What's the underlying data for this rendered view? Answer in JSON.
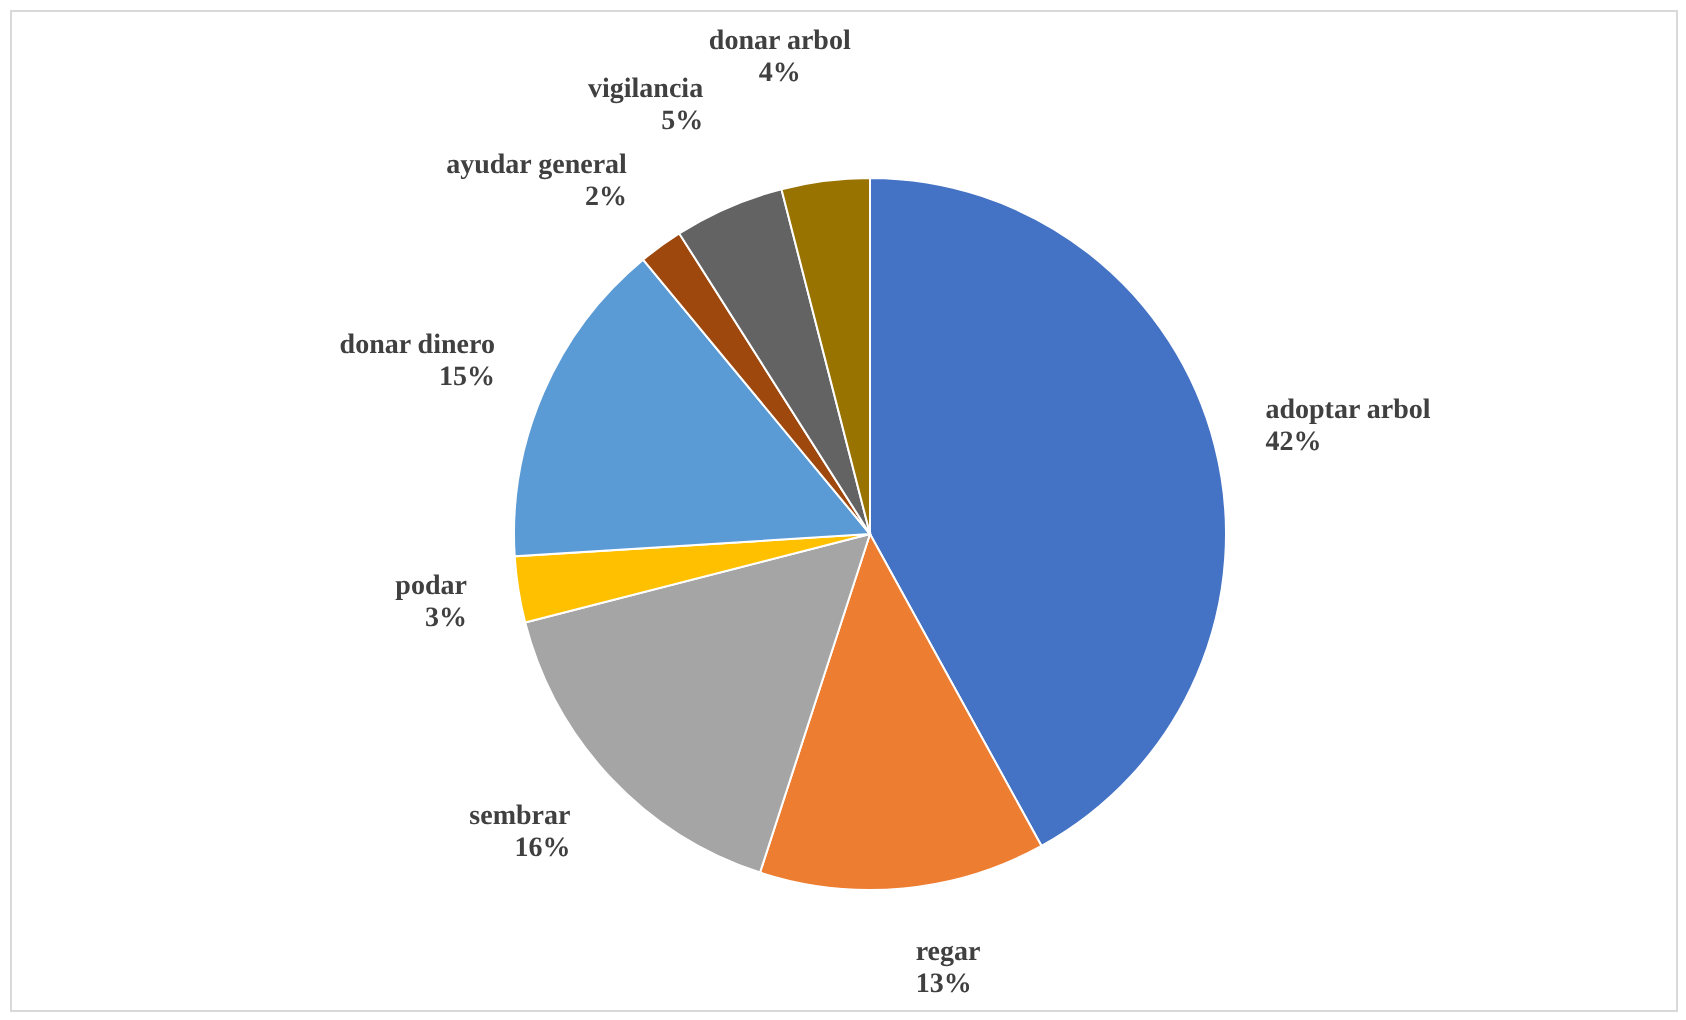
{
  "chart_data": {
    "type": "pie",
    "categories": [
      "adoptar arbol",
      "regar",
      "sembrar",
      "podar",
      "donar dinero",
      "ayudar general",
      "vigilancia",
      "donar arbol"
    ],
    "values": [
      42,
      13,
      16,
      3,
      15,
      2,
      5,
      4
    ],
    "value_labels": [
      "42%",
      "13%",
      "16%",
      "3%",
      "15%",
      "2%",
      "5%",
      "4%"
    ],
    "colors": [
      "#4472c4",
      "#ed7d31",
      "#a5a5a5",
      "#ffc000",
      "#5b9bd5",
      "#9e480e",
      "#636363",
      "#997300"
    ]
  }
}
